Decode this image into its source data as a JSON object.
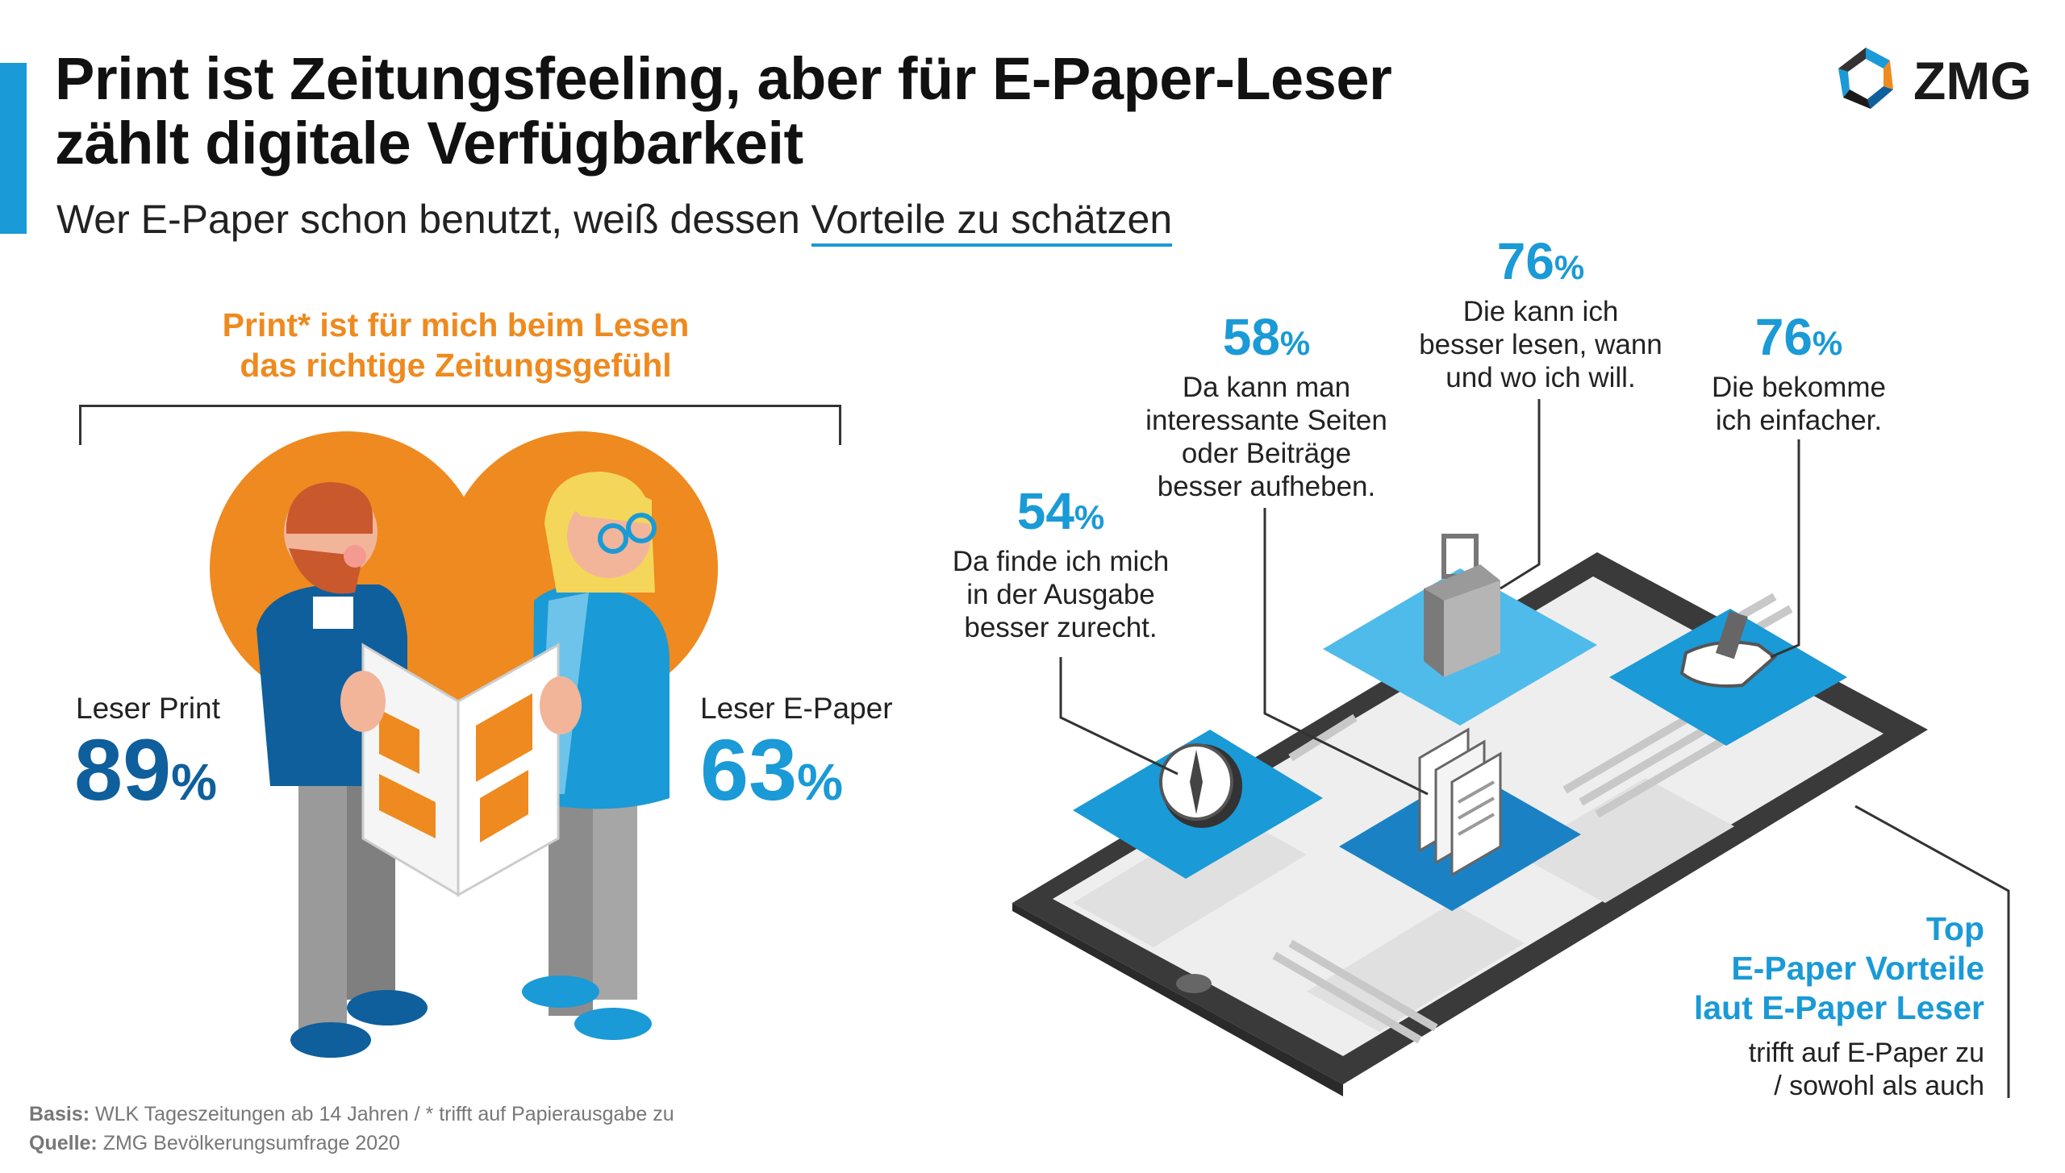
{
  "header": {
    "title_line1": "Print ist Zeitungsfeeling, aber für E-Paper-Leser",
    "title_line2": "zählt digitale Verfügbarkeit",
    "subtitle_plain": "Wer E-Paper schon benutzt, weiß dessen ",
    "subtitle_underlined": "Vorteile zu schätzen"
  },
  "logo": {
    "text": "ZMG"
  },
  "left_panel": {
    "heading_line1": "Print* ist für mich beim Lesen",
    "heading_line2": "das richtige Zeitungsgefühl"
  },
  "chart_data": [
    {
      "type": "table",
      "title": "Print* ist für mich beim Lesen das richtige Zeitungsgefühl",
      "categories": [
        "Leser Print",
        "Leser E-Paper"
      ],
      "values": [
        89,
        63
      ],
      "unit": "%"
    },
    {
      "type": "table",
      "title": "Top E-Paper Vorteile laut E-Paper Leser",
      "categories": [
        "Da finde ich mich in der Ausgabe besser zurecht.",
        "Da kann man interessante Seiten oder Beiträge besser aufheben.",
        "Die kann ich besser lesen, wann und wo ich will.",
        "Die bekomme ich einfacher."
      ],
      "values": [
        54,
        58,
        76,
        76
      ],
      "unit": "%"
    }
  ],
  "readers": [
    {
      "label": "Leser Print",
      "value": "89",
      "unit": "%"
    },
    {
      "label": "Leser E-Paper",
      "value": "63",
      "unit": "%"
    }
  ],
  "benefits": [
    {
      "value": "54",
      "unit": "%",
      "lines": [
        "Da finde ich mich",
        "in der Ausgabe",
        "besser zurecht."
      ]
    },
    {
      "value": "58",
      "unit": "%",
      "lines": [
        "Da kann man",
        "interessante Seiten",
        "oder Beiträge",
        "besser aufheben."
      ]
    },
    {
      "value": "76",
      "unit": "%",
      "lines": [
        "Die kann ich",
        "besser lesen, wann",
        "und wo ich will."
      ]
    },
    {
      "value": "76",
      "unit": "%",
      "lines": [
        "Die bekomme",
        "ich einfacher."
      ]
    }
  ],
  "top_box": {
    "line1": "Top",
    "line2": "E-Paper Vorteile",
    "line3": "laut E-Paper Leser",
    "note1": "trifft auf E-Paper zu",
    "note2": "/ sowohl als auch"
  },
  "footer": {
    "basis_label": "Basis:",
    "basis_text": " WLK Tageszeitungen ab 14 Jahren / * trifft auf Papierausgabe zu",
    "source_label": "Quelle:",
    "source_text": " ZMG Bevölkerungsumfrage 2020"
  },
  "colors": {
    "accent_blue": "#1a9ad6",
    "dark_blue": "#0e5f9c",
    "orange": "#ee8a1f",
    "tablet_gray": "#3a3a3a"
  },
  "icons": [
    "compass-icon",
    "newspaper-stack-icon",
    "suitcase-icon",
    "hand-icon"
  ]
}
